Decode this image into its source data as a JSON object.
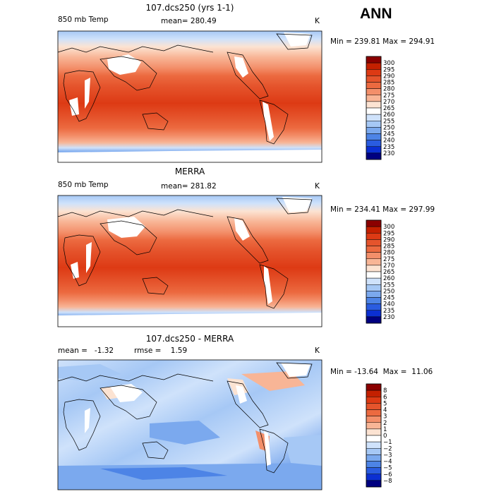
{
  "season": "ANN",
  "panels": [
    {
      "id": "model",
      "title": "107.dcs250 (yrs 1-1)",
      "left_label": "850 mb Temp",
      "mid_label": "mean= 280.49",
      "units": "K",
      "minmax": "Min = 239.81 Max = 294.91",
      "colorbar": {
        "levels": [
          "300",
          "295",
          "290",
          "285",
          "280",
          "275",
          "270",
          "265",
          "260",
          "255",
          "250",
          "245",
          "240",
          "235",
          "230"
        ],
        "colors": [
          "#8b0000",
          "#c42000",
          "#dd3a14",
          "#e5542c",
          "#ec6a40",
          "#f38f6a",
          "#f8b596",
          "#fce3d2",
          "#ffffff",
          "#cfe2fb",
          "#a6c8f5",
          "#7ba9ee",
          "#4d84e6",
          "#2a5ce0",
          "#0b2fd2",
          "#000080"
        ]
      }
    },
    {
      "id": "obs",
      "title": "MERRA",
      "left_label": "850 mb Temp",
      "mid_label": "mean= 281.82",
      "units": "K",
      "minmax": "Min = 234.41 Max = 297.99",
      "colorbar": {
        "levels": [
          "300",
          "295",
          "290",
          "285",
          "280",
          "275",
          "270",
          "265",
          "260",
          "255",
          "250",
          "245",
          "240",
          "235",
          "230"
        ],
        "colors": [
          "#8b0000",
          "#c42000",
          "#dd3a14",
          "#e5542c",
          "#ec6a40",
          "#f38f6a",
          "#f8b596",
          "#fce3d2",
          "#ffffff",
          "#cfe2fb",
          "#a6c8f5",
          "#7ba9ee",
          "#4d84e6",
          "#2a5ce0",
          "#0b2fd2",
          "#000080"
        ]
      }
    },
    {
      "id": "diff",
      "title": "107.dcs250 - MERRA",
      "left_label": "mean =   -1.32",
      "mid_label": "rmse =    1.59",
      "units": "K",
      "minmax": "Min = -13.64  Max =  11.06",
      "colorbar": {
        "levels": [
          "8",
          "6",
          "5",
          "4",
          "3",
          "2",
          "1",
          "0",
          "−1",
          "−2",
          "−3",
          "−4",
          "−5",
          "−6",
          "−8"
        ],
        "colors": [
          "#8b0000",
          "#c42000",
          "#dd3a14",
          "#e5542c",
          "#ec6a40",
          "#f38f6a",
          "#f8b596",
          "#fce3d2",
          "#ffffff",
          "#cfe2fb",
          "#a6c8f5",
          "#7ba9ee",
          "#4d84e6",
          "#2a5ce0",
          "#0b2fd2",
          "#000080"
        ]
      }
    }
  ]
}
